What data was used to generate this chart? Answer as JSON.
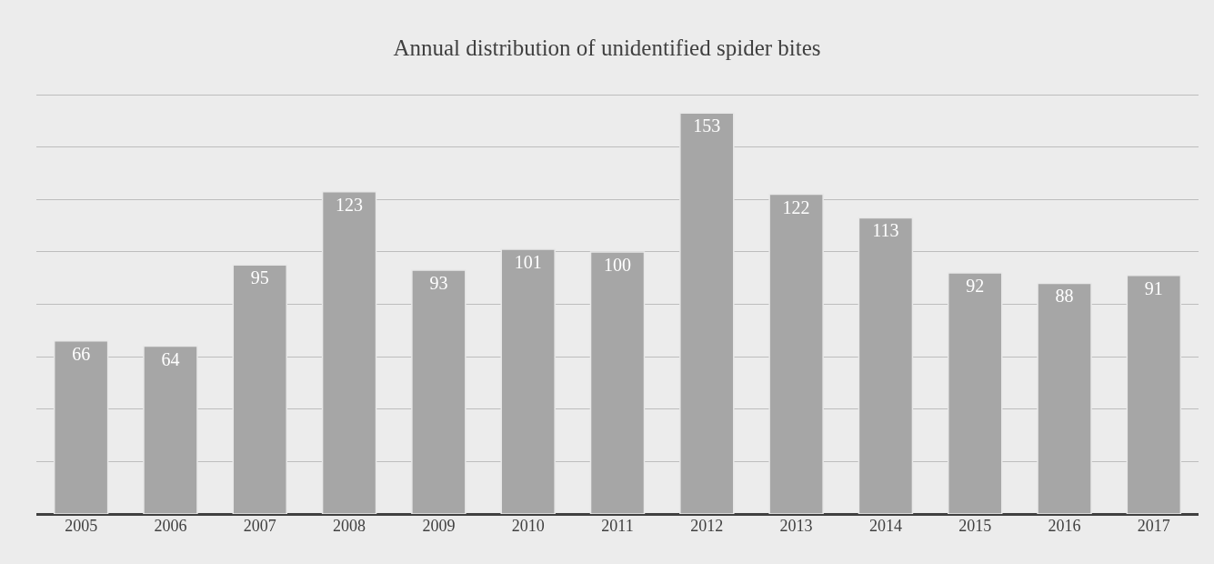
{
  "chart_data": {
    "type": "bar",
    "title": "Annual distribution of unidentified spider bites",
    "categories": [
      "2005",
      "2006",
      "2007",
      "2008",
      "2009",
      "2010",
      "2011",
      "2012",
      "2013",
      "2014",
      "2015",
      "2016",
      "2017"
    ],
    "values": [
      66,
      64,
      95,
      123,
      93,
      101,
      100,
      153,
      122,
      113,
      92,
      88,
      91
    ],
    "color": "#a6a6a6",
    "data_labels": true,
    "tick_labels": "x",
    "grid": "y"
  }
}
